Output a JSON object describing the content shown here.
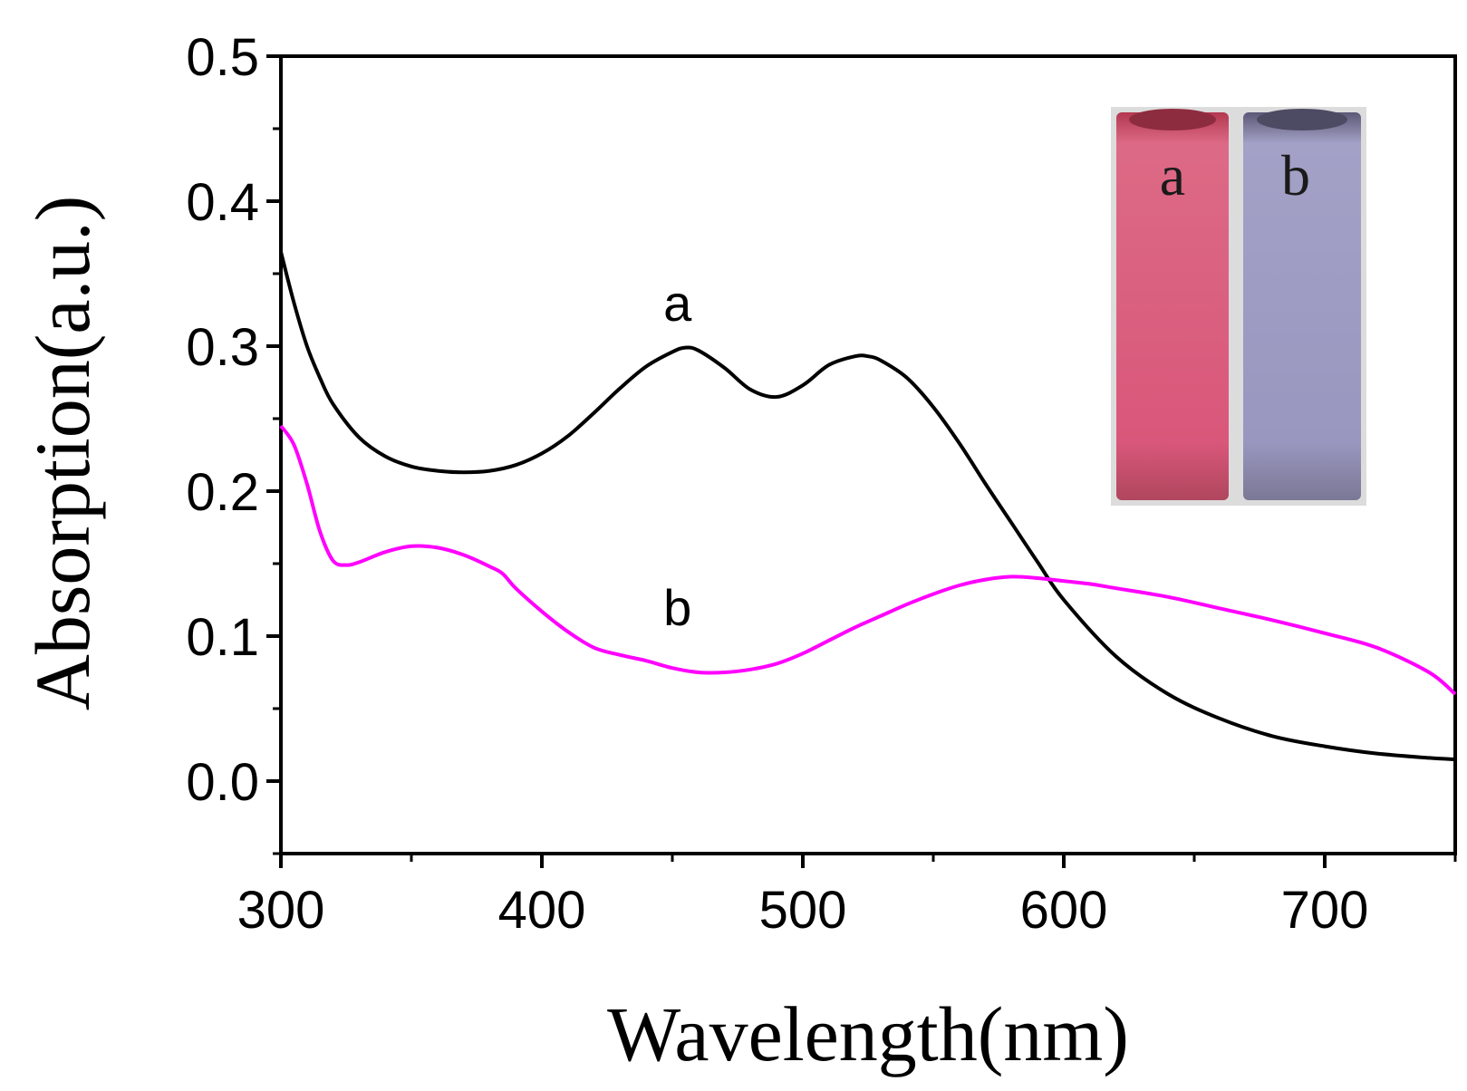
{
  "chart_data": {
    "type": "line",
    "title": "",
    "xlabel": "Wavelength(nm)",
    "ylabel": "Absorption(a.u.)",
    "xlim": [
      300,
      750
    ],
    "ylim": [
      -0.05,
      0.5
    ],
    "xticks": [
      300,
      400,
      500,
      600,
      700
    ],
    "xtick_labels": [
      "300",
      "400",
      "500",
      "600",
      "700"
    ],
    "yticks": [
      0.0,
      0.1,
      0.2,
      0.3,
      0.4,
      0.5
    ],
    "ytick_labels": [
      "0.0",
      "0.1",
      "0.2",
      "0.3",
      "0.4",
      "0.5"
    ],
    "grid": false,
    "series": [
      {
        "name": "a",
        "color": "#000000",
        "x": [
          300,
          305,
          310,
          315,
          320,
          330,
          340,
          350,
          360,
          370,
          380,
          390,
          400,
          410,
          420,
          430,
          440,
          450,
          455,
          460,
          470,
          480,
          490,
          500,
          510,
          520,
          525,
          530,
          540,
          550,
          560,
          570,
          580,
          590,
          600,
          620,
          640,
          660,
          680,
          700,
          720,
          740,
          750
        ],
        "y": [
          0.365,
          0.33,
          0.3,
          0.278,
          0.26,
          0.237,
          0.224,
          0.217,
          0.214,
          0.213,
          0.214,
          0.218,
          0.226,
          0.238,
          0.254,
          0.271,
          0.286,
          0.296,
          0.299,
          0.297,
          0.285,
          0.27,
          0.265,
          0.273,
          0.287,
          0.293,
          0.293,
          0.29,
          0.278,
          0.258,
          0.233,
          0.205,
          0.178,
          0.151,
          0.125,
          0.086,
          0.06,
          0.043,
          0.031,
          0.024,
          0.019,
          0.016,
          0.015
        ]
      },
      {
        "name": "b",
        "color": "#ff00ff",
        "x": [
          300,
          305,
          310,
          315,
          320,
          325,
          330,
          340,
          350,
          360,
          370,
          380,
          385,
          390,
          400,
          410,
          420,
          430,
          440,
          450,
          460,
          470,
          480,
          490,
          500,
          510,
          520,
          530,
          540,
          550,
          560,
          570,
          580,
          590,
          600,
          610,
          620,
          640,
          660,
          680,
          700,
          720,
          740,
          750
        ],
        "y": [
          0.245,
          0.232,
          0.205,
          0.172,
          0.152,
          0.149,
          0.151,
          0.158,
          0.162,
          0.161,
          0.156,
          0.148,
          0.143,
          0.133,
          0.117,
          0.103,
          0.092,
          0.087,
          0.083,
          0.078,
          0.075,
          0.075,
          0.077,
          0.081,
          0.088,
          0.097,
          0.106,
          0.114,
          0.122,
          0.129,
          0.135,
          0.139,
          0.141,
          0.14,
          0.138,
          0.136,
          0.133,
          0.127,
          0.119,
          0.111,
          0.102,
          0.092,
          0.075,
          0.06
        ]
      }
    ],
    "annotations": [
      {
        "text": "a",
        "x": 452,
        "y": 0.33
      },
      {
        "text": "b",
        "x": 452,
        "y": 0.12
      }
    ],
    "inset": {
      "description_labels": [
        "a",
        "b"
      ],
      "colors": [
        "#d75877",
        "#9a98be"
      ]
    }
  }
}
